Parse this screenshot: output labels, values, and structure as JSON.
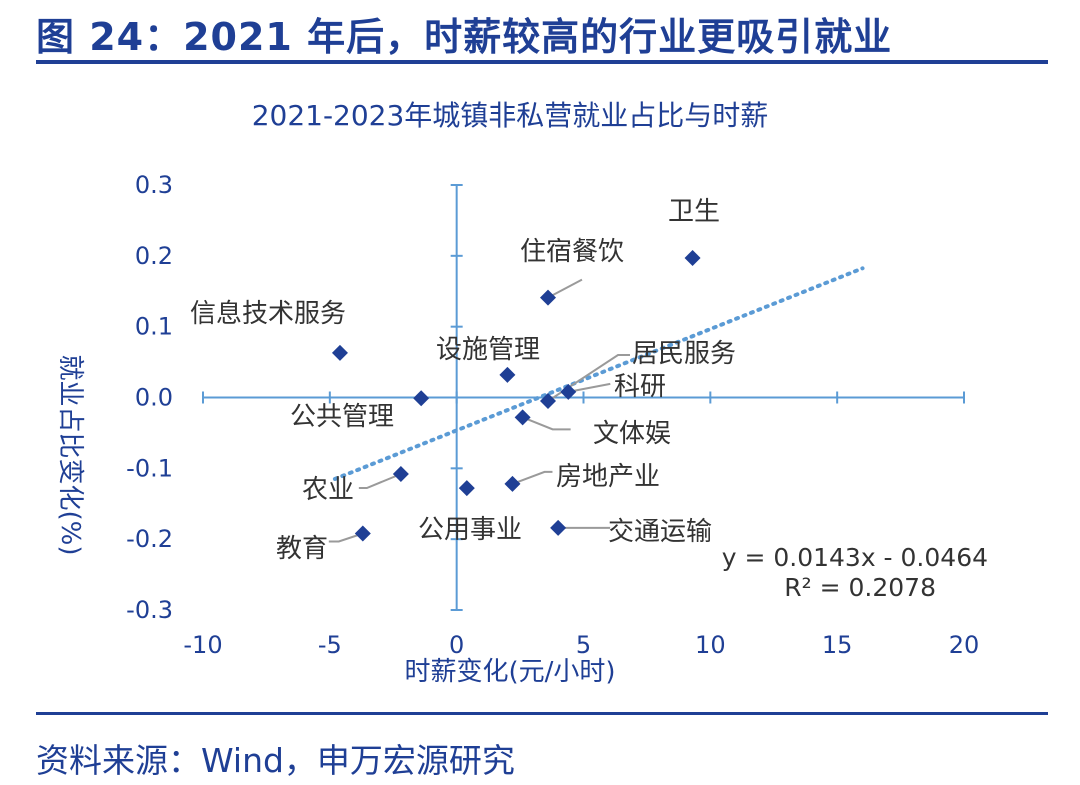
{
  "figure": {
    "title": "图 24：2021 年后，时薪较高的行业更吸引就业",
    "source": "资料来源：Wind，申万宏源研究"
  },
  "chart_data": {
    "type": "scatter",
    "title": "2021-2023年城镇非私营就业占比与时薪",
    "xlabel": "时薪变化(元/小时)",
    "ylabel": "就业占比变化(%)",
    "xlim": [
      -10,
      20
    ],
    "ylim": [
      -0.3,
      0.3
    ],
    "xticks": [
      "-10",
      "-5",
      "0",
      "5",
      "10",
      "15",
      "20"
    ],
    "yticks": [
      "0.3",
      "0.2",
      "0.1",
      "0.0",
      "-0.1",
      "-0.2",
      "-0.3"
    ],
    "points": [
      {
        "label": "卫生",
        "x": 9.3,
        "y": 0.197
      },
      {
        "label": "住宿餐饮",
        "x": 3.6,
        "y": 0.141
      },
      {
        "label": "信息技术服务",
        "x": -4.6,
        "y": 0.063
      },
      {
        "label": "设施管理",
        "x": 2.0,
        "y": 0.032
      },
      {
        "label": "居民服务",
        "x": 3.6,
        "y": -0.005
      },
      {
        "label": "科研",
        "x": 4.4,
        "y": 0.008
      },
      {
        "label": "公共管理",
        "x": -1.4,
        "y": -0.001
      },
      {
        "label": "文体娱",
        "x": 2.6,
        "y": -0.028
      },
      {
        "label": "农业",
        "x": -2.2,
        "y": -0.108
      },
      {
        "label": "公用事业",
        "x": 0.4,
        "y": -0.128
      },
      {
        "label": "房地产业",
        "x": 2.2,
        "y": -0.122
      },
      {
        "label": "教育",
        "x": -3.7,
        "y": -0.192
      },
      {
        "label": "交通运输",
        "x": 4.0,
        "y": -0.184
      }
    ],
    "trendline": {
      "slope": 0.0143,
      "intercept": -0.0464,
      "x_range": [
        -4.8,
        16
      ],
      "equation": "y = 0.0143x - 0.0464",
      "r_squared": "R² = 0.2078"
    },
    "grid": false,
    "colors": {
      "marker": "#1f3f95",
      "trend": "#5b9bd5",
      "axis": "#5b9bd5",
      "text": "#1f3f95"
    }
  }
}
